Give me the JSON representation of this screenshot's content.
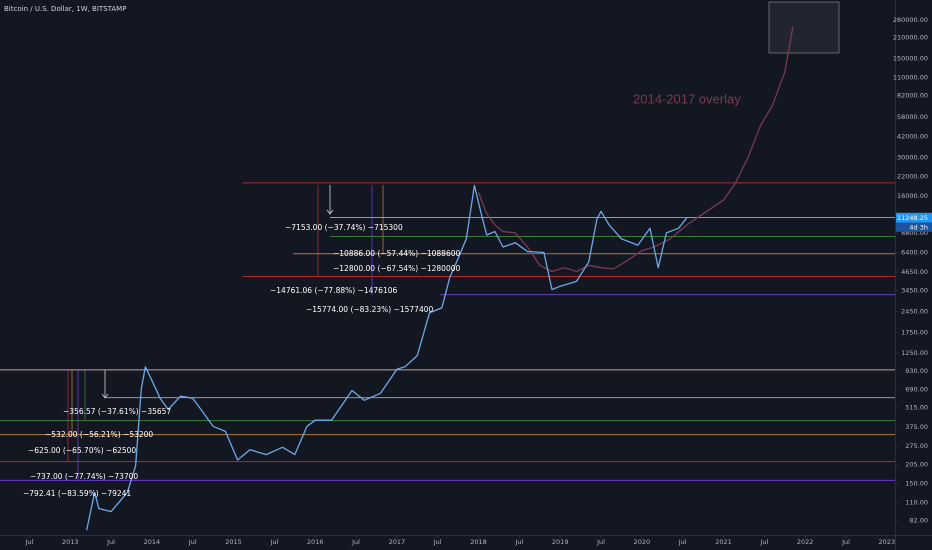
{
  "chart_data": {
    "type": "line",
    "title": "Bitcoin / U.S. Dollar, 1W, BITSTAMP",
    "log_scale": true,
    "grid": false,
    "xlim": [
      2012.14,
      2023.1
    ],
    "ylim": [
      65,
      387000
    ],
    "xticks": [
      {
        "value": 2012.5,
        "label": "Jul"
      },
      2013,
      {
        "value": 2013.5,
        "label": "Jul"
      },
      2014,
      {
        "value": 2014.5,
        "label": "Jul"
      },
      2015,
      {
        "value": 2015.5,
        "label": "Jul"
      },
      2016,
      {
        "value": 2016.5,
        "label": "Jul"
      },
      2017,
      {
        "value": 2017.5,
        "label": "Jul"
      },
      2018,
      {
        "value": 2018.5,
        "label": "Jul"
      },
      2019,
      {
        "value": 2019.5,
        "label": "Jul"
      },
      2020,
      {
        "value": 2020.5,
        "label": "Jul"
      },
      2021,
      {
        "value": 2021.5,
        "label": "Jul"
      },
      2022,
      {
        "value": 2022.5,
        "label": "Jul"
      },
      2023
    ],
    "yticks": [
      {
        "value": 280000,
        "label": "280000.00"
      },
      {
        "value": 210000,
        "label": "210000.00"
      },
      {
        "value": 150000,
        "label": "150000.00"
      },
      {
        "value": 110000,
        "label": "110000.00"
      },
      {
        "value": 82000,
        "label": "82000.00"
      },
      {
        "value": 58000,
        "label": "58000.00"
      },
      {
        "value": 42000,
        "label": "42000.00"
      },
      {
        "value": 30000,
        "label": "30000.00"
      },
      {
        "value": 22000,
        "label": "22000.00"
      },
      {
        "value": 16000,
        "label": "16000.00"
      },
      {
        "value": 8800,
        "label": "8800.00"
      },
      {
        "value": 6400,
        "label": "6400.00"
      },
      {
        "value": 4650,
        "label": "4650.00"
      },
      {
        "value": 3450,
        "label": "3450.00"
      },
      {
        "value": 2450,
        "label": "2450.00"
      },
      {
        "value": 1750,
        "label": "1750.00"
      },
      {
        "value": 1250,
        "label": "1250.00"
      },
      {
        "value": 930,
        "label": "930.00"
      },
      {
        "value": 690,
        "label": "690.00"
      },
      {
        "value": 515,
        "label": "515.00"
      },
      {
        "value": 375,
        "label": "375.00"
      },
      {
        "value": 275,
        "label": "275.00"
      },
      {
        "value": 205,
        "label": "205.00"
      },
      {
        "value": 150,
        "label": "150.00"
      },
      {
        "value": 110,
        "label": "110.00"
      },
      {
        "value": 82,
        "label": "82.00"
      }
    ],
    "series": [
      {
        "color": "#6fa8e6",
        "x": [
          2013.2,
          2013.3,
          2013.35,
          2013.5,
          2013.7,
          2013.8,
          2013.87,
          2013.92,
          2014.0,
          2014.1,
          2014.2,
          2014.35,
          2014.5,
          2014.6,
          2014.75,
          2014.9,
          2015.05,
          2015.2,
          2015.4,
          2015.6,
          2015.75,
          2015.9,
          2016.0,
          2016.2,
          2016.45,
          2016.6,
          2016.8,
          2017.0,
          2017.1,
          2017.25,
          2017.4,
          2017.55,
          2017.65,
          2017.75,
          2017.85,
          2017.95,
          2018.05,
          2018.1,
          2018.2,
          2018.3,
          2018.45,
          2018.6,
          2018.8,
          2018.9,
          2019.0,
          2019.2,
          2019.35,
          2019.45,
          2019.5,
          2019.6,
          2019.75,
          2019.95,
          2020.1,
          2020.2,
          2020.3,
          2020.45,
          2020.55
        ],
        "values": [
          70,
          130,
          100,
          95,
          130,
          200,
          700,
          1000,
          800,
          600,
          500,
          620,
          600,
          500,
          380,
          350,
          220,
          260,
          240,
          270,
          240,
          380,
          420,
          420,
          680,
          580,
          650,
          960,
          1000,
          1200,
          2400,
          2600,
          4300,
          5800,
          8000,
          19000,
          11000,
          8500,
          9000,
          7000,
          7500,
          6500,
          6400,
          3500,
          3700,
          4000,
          5500,
          11000,
          12500,
          10000,
          8000,
          7200,
          9500,
          5000,
          8800,
          9500,
          11250
        ]
      },
      {
        "name": "2014-2017 overlay",
        "color": "#7a3a55",
        "x": [
          2018.0,
          2018.1,
          2018.2,
          2018.3,
          2018.45,
          2018.6,
          2018.75,
          2018.9,
          2019.05,
          2019.2,
          2019.35,
          2019.5,
          2019.65,
          2019.8,
          2020.0,
          2020.15,
          2020.35,
          2020.55,
          2020.75,
          2021.0,
          2021.15,
          2021.3,
          2021.45,
          2021.6,
          2021.75,
          2021.85
        ],
        "values": [
          17000,
          12000,
          10000,
          9000,
          8800,
          7000,
          5200,
          4700,
          5000,
          4700,
          5200,
          5000,
          4900,
          5500,
          6600,
          7000,
          8000,
          10000,
          12000,
          15000,
          20000,
          30000,
          50000,
          70000,
          120000,
          250000
        ]
      }
    ],
    "levels": [
      {
        "value": 19850,
        "color": "#b22833",
        "from": 2015.11
      },
      {
        "value": 11300,
        "color": "#9598a1",
        "from": 2016.18
      },
      {
        "value": 8300,
        "color": "#3f7a3f",
        "from": 2016.18
      },
      {
        "value": 6270,
        "color": "#b07a3a",
        "from": 2015.73
      },
      {
        "value": 4330,
        "color": "#b22833",
        "from": 2015.11
      },
      {
        "value": 3230,
        "color": "#6a3bd1",
        "from": 2017.53
      },
      {
        "value": 950,
        "color": "#c9a0a8"
      },
      {
        "value": 605,
        "color": "#9598a1",
        "from": 2013.43
      },
      {
        "value": 417,
        "color": "#3f7a3f"
      },
      {
        "value": 332,
        "color": "#b07a3a"
      },
      {
        "value": 214,
        "color": "#b22833"
      },
      {
        "value": 158,
        "color": "#6a3bd1"
      }
    ],
    "annotations": [
      "−7153.00 (−37.74%) −715300",
      "−10886.00 (−57.44%) −1088600",
      "−12800.00 (−67.54%) −1280000",
      "−14761.06 (−77.88%) −1476106",
      "−15774.00 (−83.23%) −1577400",
      "−356.57 (−37.61%) −35657",
      "−532.00 (−56.21%) −53200",
      "−625.00 (−65.70%) −62500",
      "−737.00 (−77.74%) −73700",
      "−792.41 (−83.59%) −79241"
    ],
    "last_price": {
      "value": 11248.25,
      "label": "11248.25"
    },
    "countdown": "4d 3h"
  }
}
